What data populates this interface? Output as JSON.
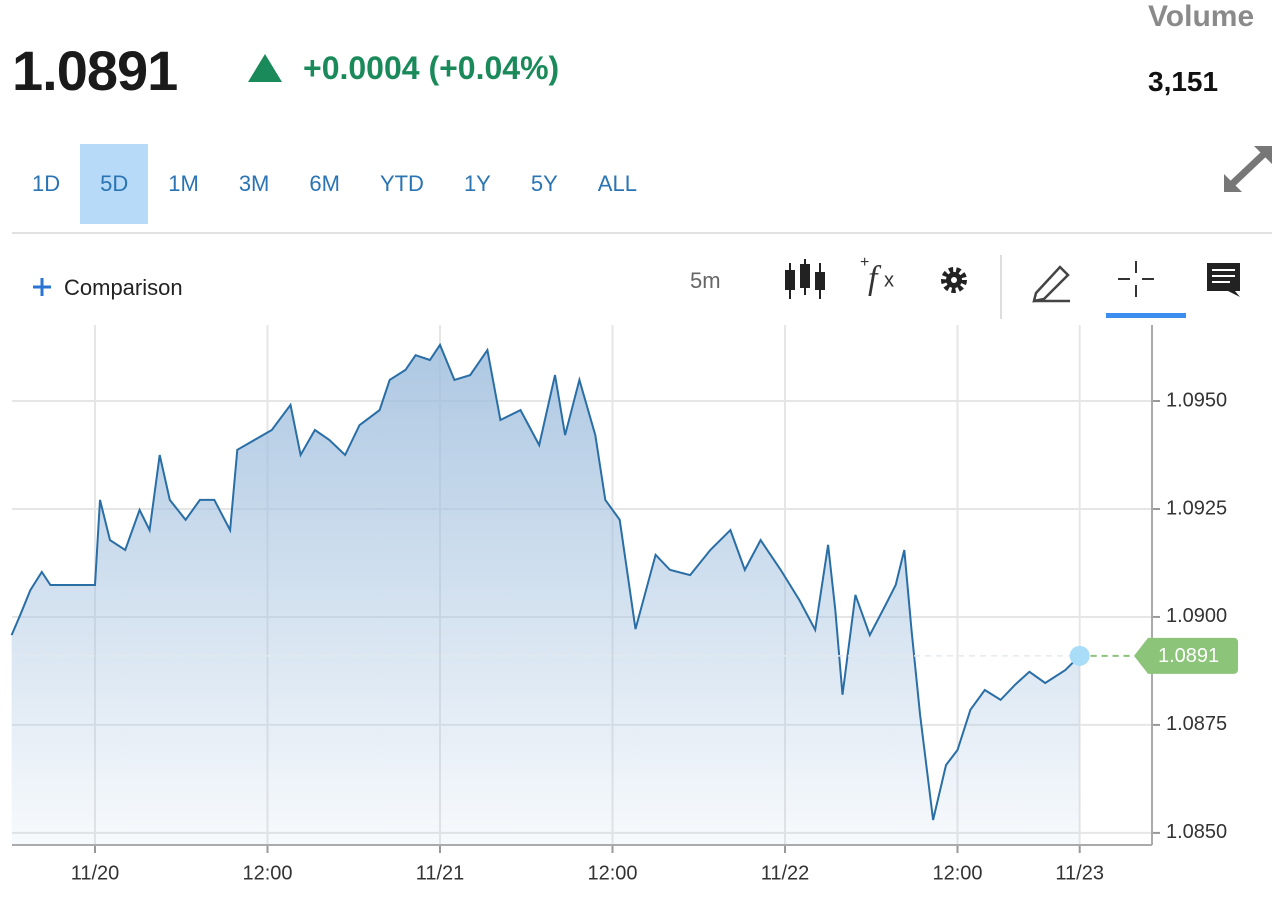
{
  "quote": {
    "price": "1.0891",
    "change": "+0.0004 (+0.04%)",
    "volume_label": "Volume",
    "volume": "3,151"
  },
  "ranges": [
    "1D",
    "5D",
    "1M",
    "3M",
    "6M",
    "YTD",
    "1Y",
    "5Y",
    "ALL"
  ],
  "toolbar": {
    "comparison": "Comparison",
    "interval": "5m"
  },
  "chart_data": {
    "type": "area",
    "x": [
      -5.8,
      -5.2,
      -4.5,
      -3.7,
      -3.1,
      0,
      0.35,
      1.04,
      2.1,
      3.1,
      3.8,
      4.5,
      5.2,
      6.3,
      7.3,
      8.3,
      9.4,
      9.9,
      11.1,
      12.3,
      13.6,
      14.3,
      15.3,
      16.3,
      17.4,
      18.4,
      19.8,
      20.5,
      21.6,
      22.3,
      23.3,
      24,
      25,
      26.1,
      27.3,
      28.2,
      29.6,
      30.9,
      32,
      32.7,
      33.7,
      34.8,
      35.5,
      36.5,
      37.6,
      39,
      40,
      41.4,
      42.8,
      44.2,
      45.2,
      46.3,
      47.7,
      49,
      50.1,
      51,
      51.5,
      52,
      52.9,
      53.9,
      55,
      55.7,
      56.3,
      56.8,
      57.4,
      58.3,
      59.2,
      60,
      60.9,
      61.9,
      63,
      64,
      65,
      66.1,
      67.5,
      68.5
    ],
    "series": [
      {
        "color": "#2a6ea6",
        "fill": "#9fbedd",
        "values": [
          1.08958,
          1.09005,
          1.09062,
          1.09104,
          1.09074,
          1.09074,
          1.09271,
          1.09178,
          1.09155,
          1.09248,
          1.09201,
          1.09375,
          1.09271,
          1.09225,
          1.09271,
          1.09271,
          1.09201,
          1.09387,
          1.0941,
          1.09433,
          1.09491,
          1.09375,
          1.09433,
          1.0941,
          1.09375,
          1.09444,
          1.09479,
          1.09549,
          1.09572,
          1.09606,
          1.09595,
          1.0963,
          1.09549,
          1.0956,
          1.09618,
          1.09456,
          1.09479,
          1.09398,
          1.0956,
          1.09421,
          1.09549,
          1.09421,
          1.09271,
          1.09225,
          1.08972,
          1.09144,
          1.09109,
          1.09097,
          1.09155,
          1.09201,
          1.09109,
          1.09178,
          1.09109,
          1.09039,
          1.0897,
          1.09167,
          1.09016,
          1.0882,
          1.09051,
          1.08958,
          1.09028,
          1.09074,
          1.09155,
          1.0897,
          1.08773,
          1.0853,
          1.08657,
          1.08692,
          1.08785,
          1.08831,
          1.08808,
          1.08843,
          1.08873,
          1.08847,
          1.08877,
          1.0891
        ]
      }
    ],
    "xlim": [
      -5.774,
      73.53
    ],
    "xticks": [
      {
        "value": 0,
        "label": "11/20"
      },
      {
        "value": 12,
        "label": "12:00"
      },
      {
        "value": 24,
        "label": "11/21"
      },
      {
        "value": 36,
        "label": "12:00"
      },
      {
        "value": 48,
        "label": "11/22"
      },
      {
        "value": 60,
        "label": "12:00"
      },
      {
        "value": 68.5,
        "label": "11/23"
      }
    ],
    "ylim": [
      1.08472,
      1.09676
    ],
    "yticks": [
      {
        "value": 1.085,
        "label": "1.0850"
      },
      {
        "value": 1.0875,
        "label": "1.0875"
      },
      {
        "value": 1.09,
        "label": "1.0900"
      },
      {
        "value": 1.0925,
        "label": "1.0925"
      },
      {
        "value": 1.095,
        "label": "1.0950"
      }
    ],
    "grid": true,
    "last_color": "#8cc47a"
  }
}
